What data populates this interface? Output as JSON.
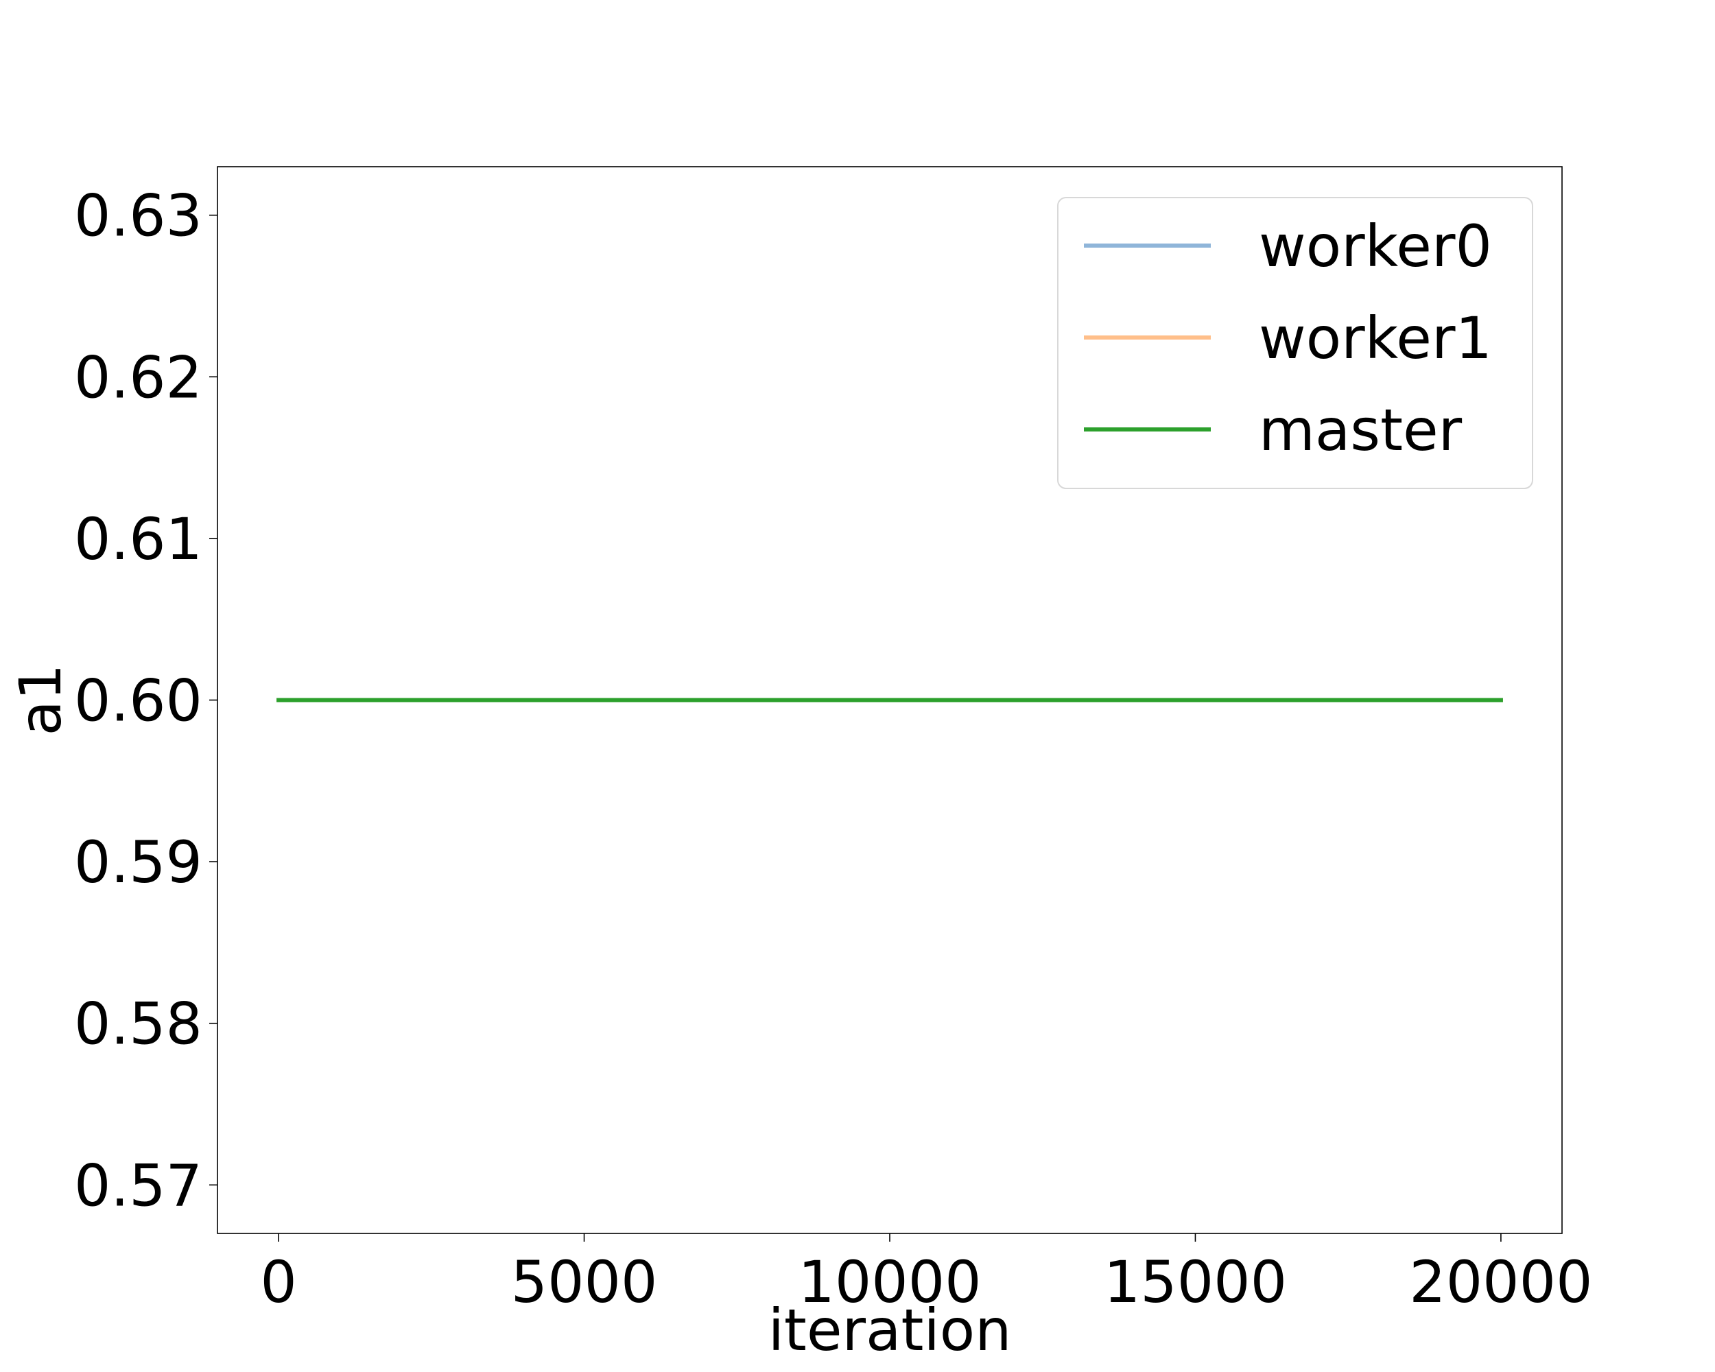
{
  "chart_data": {
    "type": "line",
    "title": "",
    "xlabel": "iteration",
    "ylabel": "a1",
    "xlim": [
      -1000,
      21000
    ],
    "ylim": [
      0.567,
      0.633
    ],
    "xticks": [
      0,
      5000,
      10000,
      15000,
      20000
    ],
    "xtick_labels": [
      "0",
      "5000",
      "10000",
      "15000",
      "20000"
    ],
    "yticks": [
      0.57,
      0.58,
      0.59,
      0.6,
      0.61,
      0.62,
      0.63
    ],
    "ytick_labels": [
      "0.57",
      "0.58",
      "0.59",
      "0.60",
      "0.61",
      "0.62",
      "0.63"
    ],
    "grid": false,
    "legend_position": "top-right",
    "series": [
      {
        "name": "worker0",
        "color": "#8fb5d9",
        "x": [
          0,
          20000
        ],
        "y": [
          0.6,
          0.6
        ]
      },
      {
        "name": "worker1",
        "color": "#ffbf8a",
        "x": [
          0,
          20000
        ],
        "y": [
          0.6,
          0.6
        ]
      },
      {
        "name": "master",
        "color": "#2ca02c",
        "x": [
          0,
          20000
        ],
        "y": [
          0.6,
          0.6
        ]
      }
    ]
  }
}
